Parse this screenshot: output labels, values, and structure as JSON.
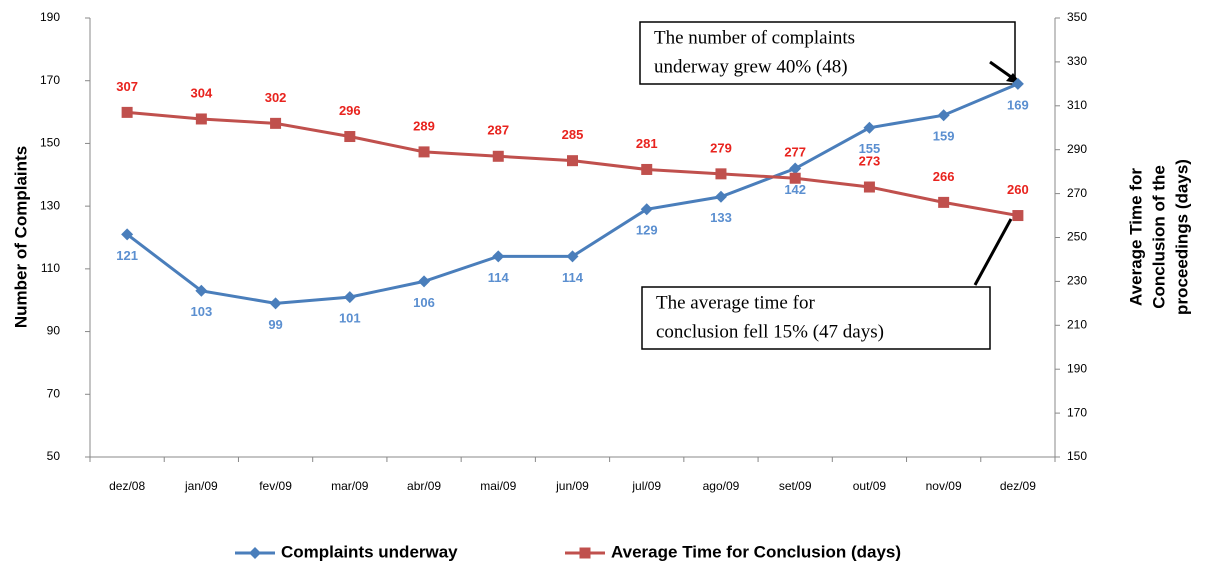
{
  "chart_data": {
    "type": "line",
    "y_label": "Number of Complaints",
    "y2_label": [
      "Average Time for",
      "Conclusion of the",
      "proceedings (days)"
    ],
    "categories": [
      "dez/08",
      "jan/09",
      "fev/09",
      "mar/09",
      "abr/09",
      "mai/09",
      "jun/09",
      "jul/09",
      "ago/09",
      "set/09",
      "out/09",
      "nov/09",
      "dez/09"
    ],
    "series": [
      {
        "name": "Complaints underway",
        "color": "#4a7ebb",
        "label_color": "#5b8fd0",
        "marker": "diamond",
        "values": [
          121,
          103,
          99,
          101,
          106,
          114,
          114,
          129,
          133,
          142,
          155,
          159,
          169
        ]
      },
      {
        "name": "Average Time for Conclusion (days)",
        "color": "#c0504d",
        "label_color": "#e8231e",
        "marker": "square",
        "axis": "y2",
        "values": [
          307,
          304,
          302,
          296,
          289,
          287,
          285,
          281,
          279,
          277,
          273,
          266,
          260
        ]
      }
    ],
    "ylim": [
      50,
      190
    ],
    "yticks": [
      50,
      70,
      90,
      110,
      130,
      150,
      170,
      190
    ],
    "y2lim": [
      150,
      350
    ],
    "y2ticks": [
      150,
      170,
      190,
      210,
      230,
      250,
      270,
      290,
      310,
      330,
      350
    ],
    "annotations": [
      {
        "lines": [
          "The number of complaints",
          "underway grew 40% (48)"
        ]
      },
      {
        "lines": [
          "The average time for",
          "conclusion fell 15% (47 days)"
        ]
      }
    ],
    "legend": "bottom"
  }
}
